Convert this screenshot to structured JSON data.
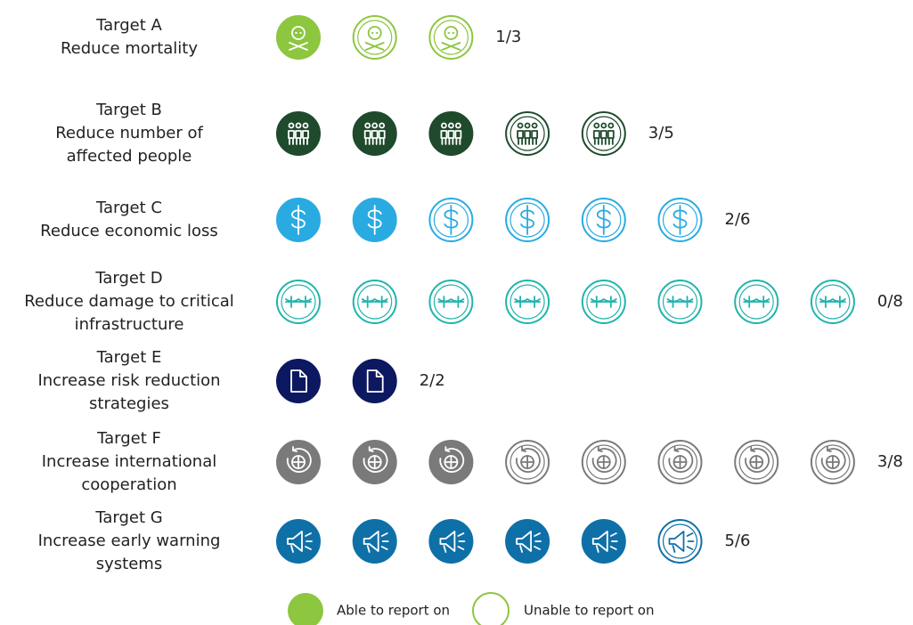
{
  "targets": [
    {
      "title": "Target A",
      "lines": [
        "Reduce mortality"
      ],
      "able": 1,
      "total": 3,
      "score": "1/3",
      "color": "#8dc63f",
      "icon": "skull"
    },
    {
      "title": "Target B",
      "lines": [
        "Reduce number of",
        "affected people"
      ],
      "able": 3,
      "total": 5,
      "score": "3/5",
      "color": "#1f4a2c",
      "icon": "people"
    },
    {
      "title": "Target C",
      "lines": [
        "Reduce economic loss"
      ],
      "able": 2,
      "total": 6,
      "score": "2/6",
      "color": "#29abe2",
      "icon": "dollar"
    },
    {
      "title": "Target D",
      "lines": [
        "Reduce damage to critical",
        "infrastructure"
      ],
      "able": 0,
      "total": 8,
      "score": "0/8",
      "color": "#22b3ad",
      "icon": "bridge"
    },
    {
      "title": "Target E",
      "lines": [
        "Increase risk reduction",
        "strategies"
      ],
      "able": 2,
      "total": 2,
      "score": "2/2",
      "color": "#0c1860",
      "icon": "doc"
    },
    {
      "title": "Target F",
      "lines": [
        "Increase international",
        "cooperation"
      ],
      "able": 3,
      "total": 8,
      "score": "3/8",
      "color": "#7a7a7a",
      "icon": "globe"
    },
    {
      "title": "Target G",
      "lines": [
        "Increase early warning",
        "systems"
      ],
      "able": 5,
      "total": 6,
      "score": "5/6",
      "color": "#0f70a8",
      "icon": "horn"
    }
  ],
  "legend": {
    "able": "Able to report on",
    "unable": "Unable to report on",
    "color": "#8dc63f"
  }
}
